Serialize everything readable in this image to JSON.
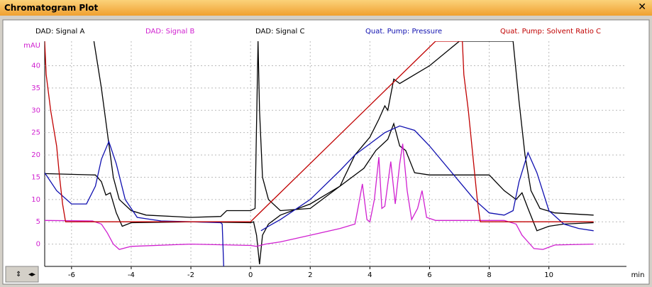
{
  "window": {
    "title": "Chromatogram Plot"
  },
  "chart_data": {
    "type": "line",
    "x_label": "min",
    "y_label": "mAU",
    "xlim": [
      -6.9,
      12.6
    ],
    "xticks": [
      -6,
      -4,
      -2,
      0,
      2,
      4,
      6,
      8,
      10
    ],
    "ylim": [
      -5,
      45.5
    ],
    "yticks": [
      0,
      5,
      10,
      15,
      20,
      25,
      30,
      35,
      40
    ],
    "grid": true,
    "legend": "top",
    "series": [
      {
        "name": "DAD: Signal A",
        "color": "#000000",
        "x": [
          -6.9,
          -5.2,
          -5.0,
          -4.85,
          -4.7,
          -4.5,
          -4.3,
          -4.0,
          -2,
          0,
          0.1,
          0.2,
          0.3,
          0.4,
          0.6,
          1,
          2,
          3,
          3.8,
          4.2,
          4.6,
          4.8,
          5,
          5.2,
          5.5,
          6,
          8,
          8.5,
          8.9,
          9.1,
          9.3,
          9.6,
          10,
          10.5,
          11.5
        ],
        "values": [
          15.8,
          15.5,
          14,
          11,
          11.5,
          7,
          4,
          4.8,
          5,
          4.8,
          5,
          2,
          -4.5,
          2,
          4.5,
          6.5,
          9,
          13,
          17,
          21,
          23.5,
          27,
          22,
          21,
          16,
          15.5,
          15.5,
          12,
          10,
          11.5,
          8,
          3,
          4,
          4.5,
          4.8
        ]
      },
      {
        "name": "DAD: Signal B",
        "color": "#d020d0",
        "x": [
          -6.9,
          -5.3,
          -5,
          -4.8,
          -4.6,
          -4.4,
          -4,
          -2,
          0,
          0.2,
          0.5,
          1,
          2,
          3,
          3.5,
          3.6,
          3.75,
          3.9,
          4.0,
          4.15,
          4.3,
          4.4,
          4.5,
          4.7,
          4.85,
          5,
          5.1,
          5.25,
          5.4,
          5.6,
          5.75,
          5.9,
          6.2,
          8.5,
          8.9,
          9.1,
          9.3,
          9.5,
          9.8,
          10.2,
          11.5
        ],
        "values": [
          5.3,
          5.2,
          4.5,
          2.5,
          0,
          -1.2,
          -0.5,
          0,
          -0.3,
          -0.5,
          0,
          0.5,
          2,
          3.5,
          4.5,
          8,
          13.5,
          5.5,
          5,
          10,
          19.5,
          8,
          8.5,
          18.5,
          9,
          18,
          22.5,
          12,
          5.5,
          8,
          12,
          6,
          5.3,
          5.3,
          4.5,
          2,
          0.5,
          -1,
          -1.2,
          -0.2,
          0
        ]
      },
      {
        "name": "DAD: Signal C",
        "color": "#000000",
        "x": [
          -5.25,
          -5.0,
          -4.8,
          -4.6,
          -4.4,
          -4.0,
          -3.5,
          -2,
          -1,
          -0.8,
          0,
          0.15,
          0.25,
          0.3,
          0.4,
          0.6,
          1,
          2,
          3,
          3.5,
          4,
          4.3,
          4.5,
          4.6,
          4.8,
          5,
          5.5,
          6,
          7,
          8.8,
          9.0,
          9.2,
          9.4,
          9.7,
          10.2,
          11.5
        ],
        "values": [
          45.5,
          35,
          25,
          15,
          10,
          7.5,
          6.5,
          6,
          6.2,
          7.5,
          7.5,
          8,
          45.5,
          30,
          15,
          10,
          7.5,
          8,
          13,
          20,
          24,
          28,
          31,
          30,
          37,
          36,
          38,
          40,
          45.5,
          45.5,
          32,
          20,
          12,
          8,
          7,
          6.5
        ]
      },
      {
        "name": "Quat. Pump: Pressure",
        "color": "#1010b0",
        "x": [
          -6.9,
          -6.5,
          -6,
          -5.5,
          -5.2,
          -5,
          -4.75,
          -4.5,
          -4.2,
          -3.8,
          -3,
          -2,
          -1,
          -0.95,
          -0.9,
          0.3,
          0.35,
          0.6,
          1,
          2,
          3,
          3.5,
          4,
          4.5,
          5,
          5.5,
          6,
          7,
          7.5,
          8,
          8.5,
          8.8,
          9,
          9.3,
          9.6,
          10,
          10.5,
          11,
          11.5
        ],
        "values": [
          16,
          12,
          9,
          9,
          13,
          19,
          23,
          18,
          10,
          6,
          5.2,
          5,
          4.8,
          4.5,
          -5,
          null,
          3,
          4,
          5.5,
          10,
          16.5,
          20,
          22.5,
          25,
          26.5,
          25.5,
          22,
          14,
          10,
          7,
          6.5,
          7.5,
          14,
          20.5,
          16,
          7.5,
          4.5,
          3.5,
          3
        ]
      },
      {
        "name": "Quat. Pump: Solvent Ratio C",
        "color": "#c00000",
        "x": [
          -6.9,
          -6.85,
          -6.7,
          -6.5,
          -6.4,
          -6.3,
          -6.2,
          -6.0,
          0,
          0.15,
          6.2,
          7.1,
          7.15,
          7.3,
          7.45,
          7.6,
          7.7,
          11.5
        ],
        "values": [
          45.5,
          38,
          30,
          22,
          15,
          9,
          5,
          5,
          5,
          6,
          45.5,
          45.5,
          38,
          30,
          20,
          10,
          5,
          5
        ]
      }
    ]
  }
}
